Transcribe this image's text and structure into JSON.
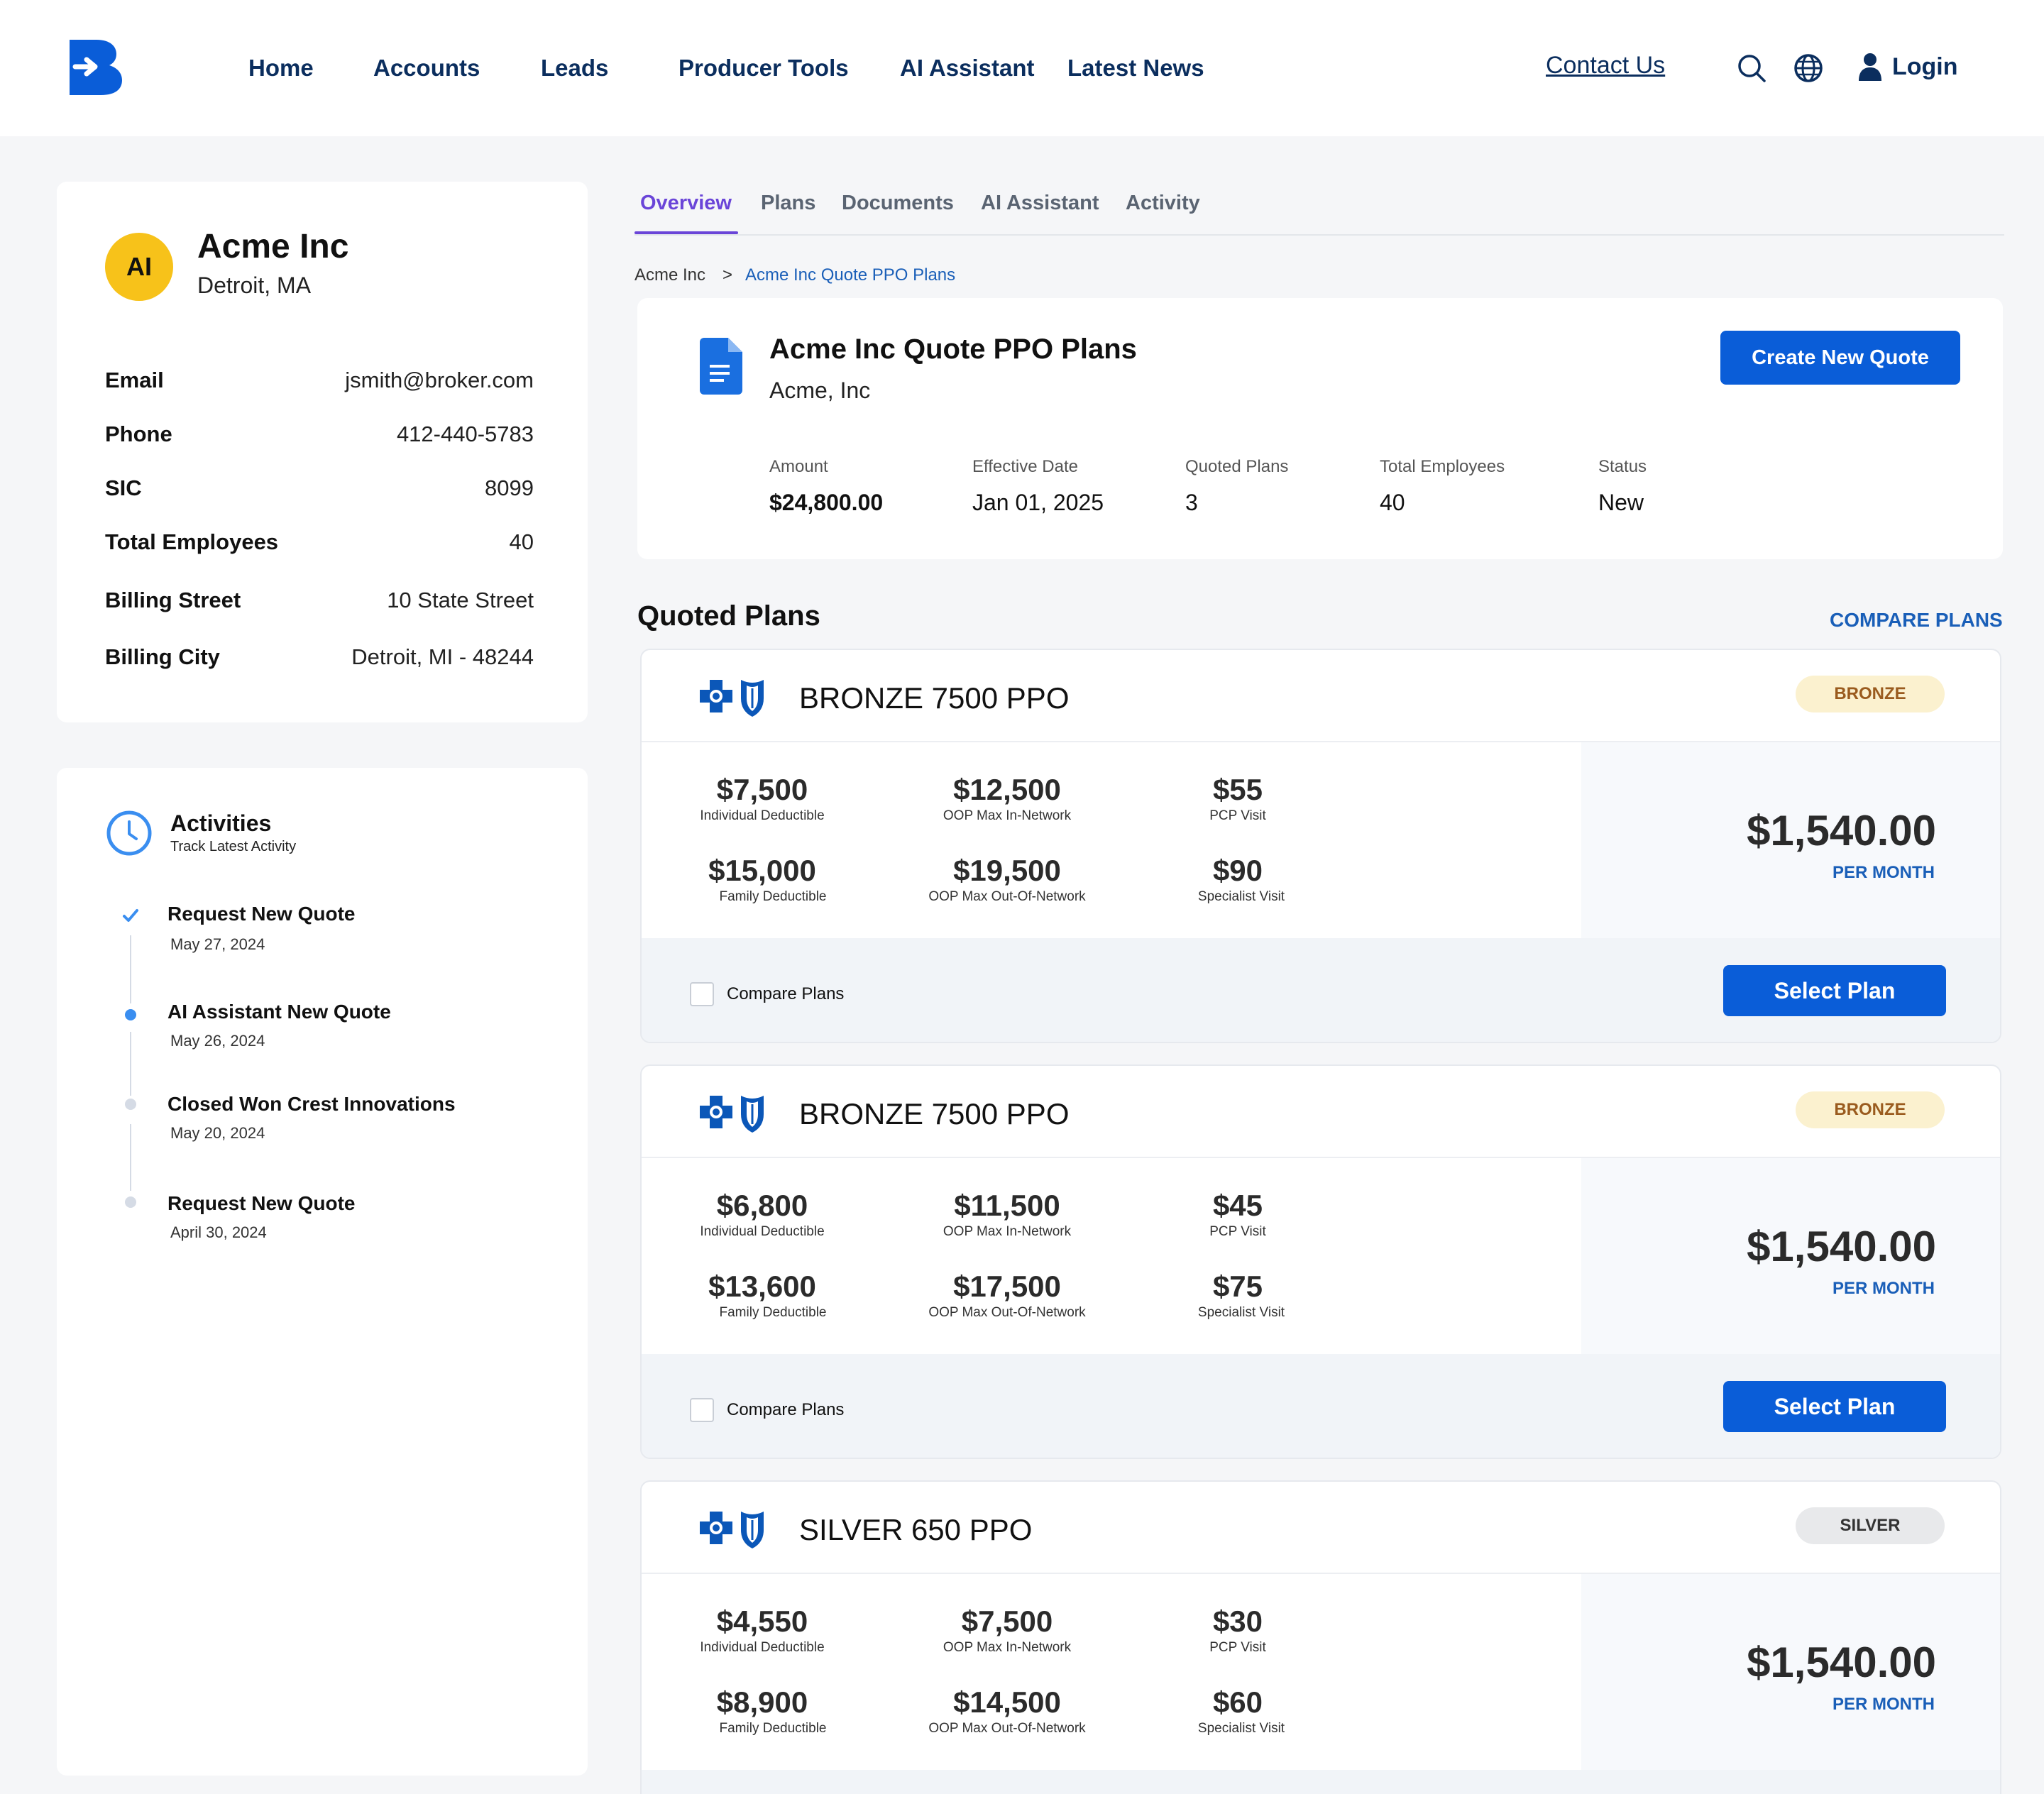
{
  "header": {
    "nav": [
      "Home",
      "Accounts",
      "Leads",
      "Producer Tools",
      "AI Assistant",
      "Latest News"
    ],
    "contact": "Contact Us",
    "login": "Login"
  },
  "profile": {
    "initials": "AI",
    "name": "Acme Inc",
    "location": "Detroit, MA",
    "fields": [
      {
        "label": "Email",
        "value": "jsmith@broker.com"
      },
      {
        "label": "Phone",
        "value": "412-440-5783"
      },
      {
        "label": "SIC",
        "value": "8099"
      },
      {
        "label": "Total Employees",
        "value": "40"
      },
      {
        "label": "Billing Street",
        "value": "10 State Street"
      },
      {
        "label": "Billing City",
        "value": "Detroit, MI - 48244"
      }
    ]
  },
  "activities": {
    "title": "Activities",
    "subtitle": "Track Latest Activity",
    "items": [
      {
        "title": "Request New Quote",
        "date": "May 27, 2024"
      },
      {
        "title": "AI Assistant New Quote",
        "date": "May 26, 2024"
      },
      {
        "title": "Closed Won Crest Innovations",
        "date": "May 20, 2024"
      },
      {
        "title": "Request New Quote",
        "date": "April 30, 2024"
      }
    ]
  },
  "tabs": [
    "Overview",
    "Plans",
    "Documents",
    "AI Assistant",
    "Activity"
  ],
  "breadcrumb": {
    "root": "Acme Inc",
    "sep": ">",
    "current": "Acme Inc Quote PPO Plans"
  },
  "quote": {
    "title": "Acme Inc Quote PPO Plans",
    "subtitle": "Acme, Inc",
    "create_label": "Create  New Quote",
    "stats": [
      {
        "label": "Amount",
        "value": "$24,800.00"
      },
      {
        "label": "Effective Date",
        "value": "Jan 01, 2025"
      },
      {
        "label": "Quoted Plans",
        "value": "3"
      },
      {
        "label": "Total Employees",
        "value": "40"
      },
      {
        "label": "Status",
        "value": "New"
      }
    ]
  },
  "quoted_plans": {
    "title": "Quoted Plans",
    "compare_link": "COMPARE PLANS",
    "compare_label": "Compare Plans",
    "select_label": "Select Plan",
    "per_month": "PER MONTH",
    "plans": [
      {
        "name": "BRONZE 7500 PPO",
        "tier": "BRONZE",
        "price": "$1,540.00",
        "metrics": [
          {
            "value": "$7,500",
            "label": "Individual Deductible"
          },
          {
            "value": "$12,500",
            "label": "OOP Max In-Network"
          },
          {
            "value": "$55",
            "label": "PCP Visit"
          },
          {
            "value": "$15,000",
            "label": "Family Deductible"
          },
          {
            "value": "$19,500",
            "label": "OOP Max Out-Of-Network"
          },
          {
            "value": "$90",
            "label": "Specialist Visit"
          }
        ]
      },
      {
        "name": "BRONZE 7500 PPO",
        "tier": "BRONZE",
        "price": "$1,540.00",
        "metrics": [
          {
            "value": "$6,800",
            "label": "Individual Deductible"
          },
          {
            "value": "$11,500",
            "label": "OOP Max In-Network"
          },
          {
            "value": "$45",
            "label": "PCP Visit"
          },
          {
            "value": "$13,600",
            "label": "Family Deductible"
          },
          {
            "value": "$17,500",
            "label": "OOP Max Out-Of-Network"
          },
          {
            "value": "$75",
            "label": "Specialist Visit"
          }
        ]
      },
      {
        "name": "SILVER 650 PPO",
        "tier": "SILVER",
        "price": "$1,540.00",
        "metrics": [
          {
            "value": "$4,550",
            "label": "Individual Deductible"
          },
          {
            "value": "$7,500",
            "label": "OOP Max In-Network"
          },
          {
            "value": "$30",
            "label": "PCP Visit"
          },
          {
            "value": "$8,900",
            "label": "Family Deductible"
          },
          {
            "value": "$14,500",
            "label": "OOP Max Out-Of-Network"
          },
          {
            "value": "$60",
            "label": "Specialist Visit"
          }
        ]
      }
    ]
  },
  "colors": {
    "brand": "#0a5dd8",
    "accent_tab": "#6a45d8",
    "avatar": "#f7c21a",
    "nav_text": "#0b2e5e"
  }
}
